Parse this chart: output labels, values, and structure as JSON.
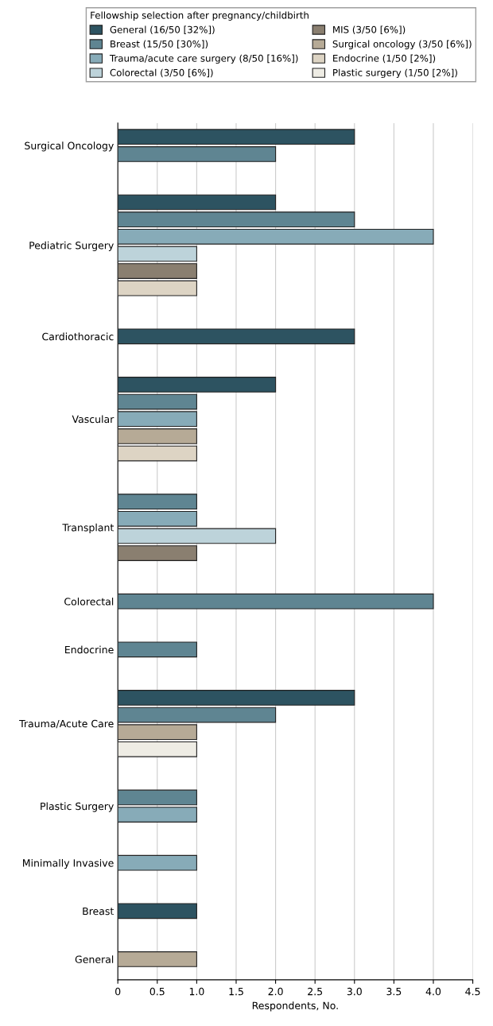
{
  "chart_data": {
    "type": "bar",
    "orientation": "horizontal",
    "xlabel": "Respondents, No.",
    "legend_title": "Fellowship selection after pregnancy/childbirth",
    "legend": "top",
    "grid": "x",
    "categories": [
      "Surgical Oncology",
      "Pediatric Surgery",
      "Cardiothoracic",
      "Vascular",
      "Transplant",
      "Colorectal",
      "Endocrine",
      "Trauma/Acute Care",
      "Plastic Surgery",
      "Minimally Invasive",
      "Breast",
      "General"
    ],
    "series": [
      {
        "name": "General (16/50 [32%])",
        "color": "#2d5361",
        "values": [
          3,
          2,
          3,
          2,
          null,
          null,
          null,
          3,
          null,
          null,
          1,
          null
        ]
      },
      {
        "name": "Breast (15/50 [30%])",
        "color": "#5f8592",
        "values": [
          2,
          3,
          null,
          1,
          1,
          4,
          1,
          2,
          1,
          null,
          null,
          null
        ]
      },
      {
        "name": "Trauma/acute care surgery (8/50 [16%])",
        "color": "#87abb8",
        "values": [
          null,
          4,
          null,
          1,
          1,
          null,
          null,
          null,
          1,
          1,
          null,
          null
        ]
      },
      {
        "name": "Colorectal (3/50 [6%])",
        "color": "#bdd3da",
        "values": [
          null,
          1,
          null,
          null,
          2,
          null,
          null,
          null,
          null,
          null,
          null,
          null
        ]
      },
      {
        "name": "MIS (3/50 [6%])",
        "color": "#8a7f70",
        "values": [
          null,
          1,
          null,
          null,
          1,
          null,
          null,
          null,
          null,
          null,
          null,
          null
        ]
      },
      {
        "name": "Surgical oncology (3/50 [6%])",
        "color": "#b6aa96",
        "values": [
          null,
          null,
          null,
          1,
          null,
          null,
          null,
          1,
          null,
          null,
          null,
          1
        ]
      },
      {
        "name": "Endocrine (1/50 [2%])",
        "color": "#ddd4c4",
        "values": [
          null,
          1,
          null,
          1,
          null,
          null,
          null,
          null,
          null,
          null,
          null,
          null
        ]
      },
      {
        "name": "Plastic surgery (1/50 [2%])",
        "color": "#eeece4",
        "values": [
          null,
          null,
          null,
          null,
          null,
          null,
          null,
          1,
          null,
          null,
          null,
          null
        ]
      }
    ],
    "xlim": [
      0,
      4.5
    ],
    "xticks": [
      0,
      0.5,
      {
        "value": 1,
        "label": "1.0"
      },
      1.5,
      {
        "value": 2,
        "label": "2.0"
      },
      2.5,
      {
        "value": 3,
        "label": "3.0"
      },
      3.5,
      {
        "value": 4,
        "label": "4.0"
      },
      4.5
    ]
  }
}
